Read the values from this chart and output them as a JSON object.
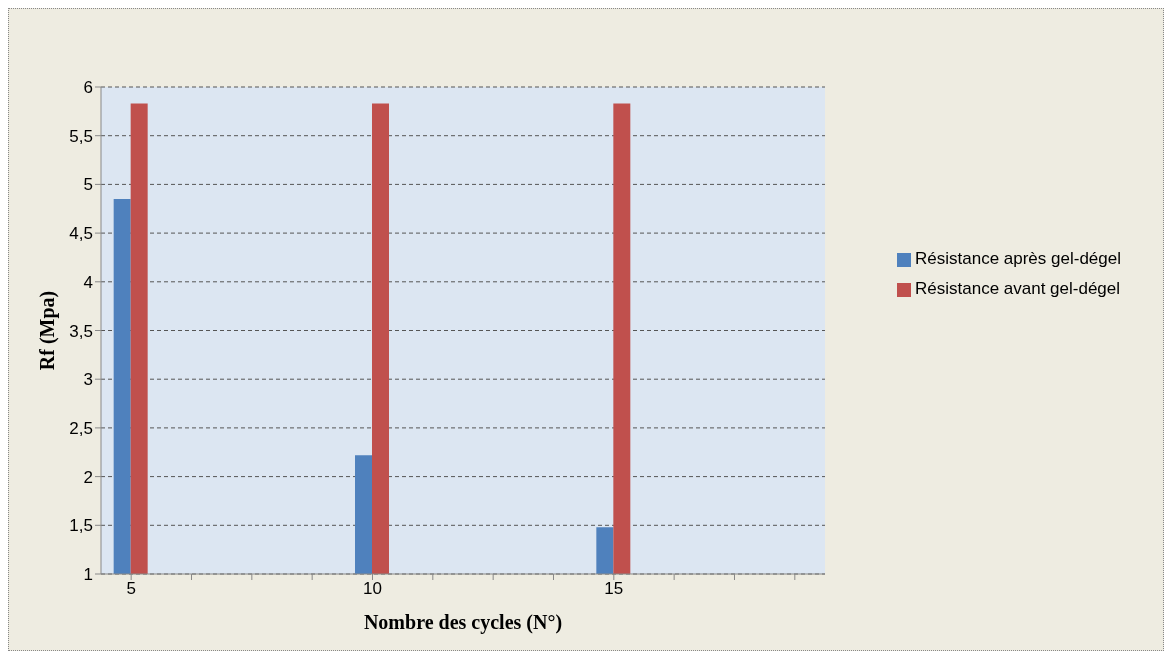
{
  "chart_data": {
    "type": "bar",
    "xlabel": "Nombre des cycles (N°)",
    "ylabel": "Rf (Mpa)",
    "categories": [
      "5",
      null,
      null,
      null,
      "10",
      null,
      null,
      null,
      "15",
      null,
      null,
      null
    ],
    "series": [
      {
        "name": "Résistance après gel-dégel",
        "color": "#4f81bd",
        "values": [
          4.85,
          null,
          null,
          null,
          2.22,
          null,
          null,
          null,
          1.48,
          null,
          null,
          null
        ]
      },
      {
        "name": "Résistance avant gel-dégel",
        "color": "#c0504d",
        "values": [
          5.83,
          null,
          null,
          null,
          5.83,
          null,
          null,
          null,
          5.83,
          null,
          null,
          null
        ]
      }
    ],
    "ylim": [
      1,
      6
    ],
    "yticks": [
      1,
      {
        "value": 1.5,
        "label": "1,5"
      },
      2,
      {
        "value": 2.5,
        "label": "2,5"
      },
      3,
      {
        "value": 3.5,
        "label": "3,5"
      },
      4,
      {
        "value": 4.5,
        "label": "4,5"
      },
      5,
      {
        "value": 5.5,
        "label": "5,5"
      },
      6
    ],
    "grid": "y",
    "legend": "right"
  }
}
